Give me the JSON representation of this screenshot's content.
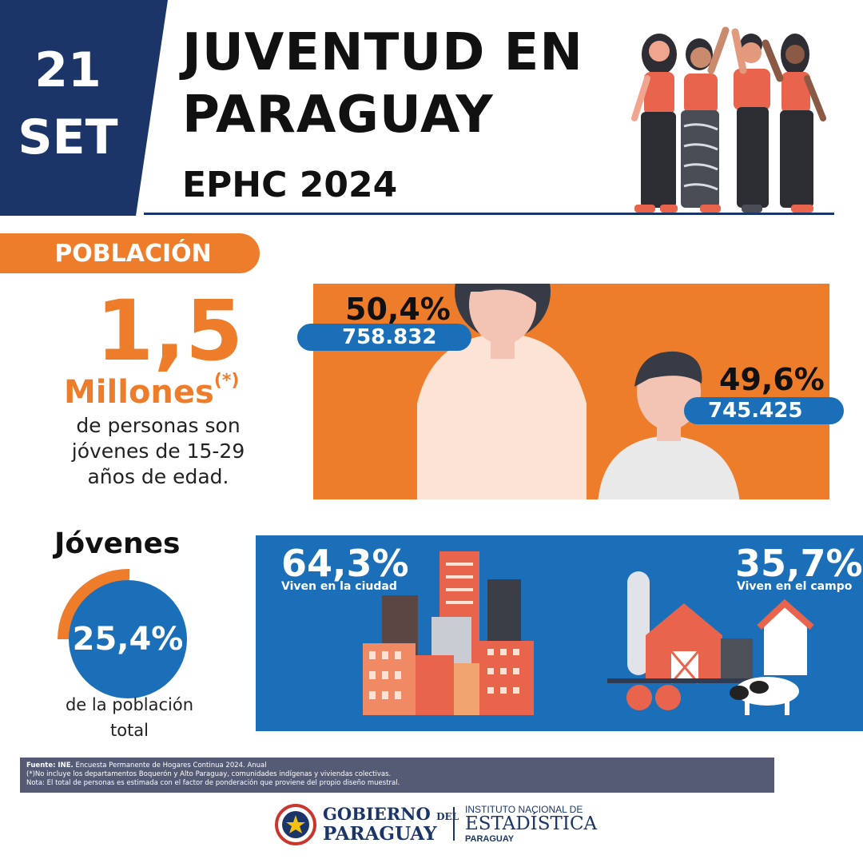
{
  "header": {
    "date_day": "21",
    "date_month": "SET",
    "title_line1": "JUVENTUD EN",
    "title_line2": "PARAGUAY",
    "subtitle": "EPHC 2024",
    "colors": {
      "navy": "#1b3568",
      "orange": "#ee7d2b",
      "blue": "#1b6fb8"
    }
  },
  "poblacion": {
    "tag": "POBLACIÓN",
    "big_number": "1,5",
    "millones": "Millones",
    "asterisk": "(*)",
    "desc_line1": "de personas son",
    "desc_line2": "jóvenes de 15-29",
    "desc_line3": "años de edad."
  },
  "gender": {
    "female_pct": "50,4%",
    "female_count": "758.832",
    "male_pct": "49,6%",
    "male_count": "745.425"
  },
  "jovenes": {
    "title": "Jóvenes",
    "pct": "25,4%",
    "share": 0.254,
    "desc_line1": "de la población",
    "desc_line2": "total"
  },
  "residence": {
    "city_pct": "64,3%",
    "city_label": "Viven en la ciudad",
    "rural_pct": "35,7%",
    "rural_label": "Viven en el campo"
  },
  "notes": {
    "source_bold": "Fuente: INE.",
    "source_text": " Encuesta Permanente de Hogares Continua 2024. Anual",
    "note1": "(*)No incluye los departamentos Boquerón y Alto Paraguay, comunidades indígenas y viviendas colectivas.",
    "note2": "Nota: El total de personas es estimada con el factor de ponderación que proviene del propio diseño muestral."
  },
  "logos": {
    "gob_line1a": "GOBIERNO",
    "gob_del": "DEL",
    "gob_line2": "PARAGUAY",
    "ine_line1": "INSTITUTO NACIONAL DE",
    "ine_line2": "ESTADÍSTICA",
    "ine_line3": "PARAGUAY"
  }
}
